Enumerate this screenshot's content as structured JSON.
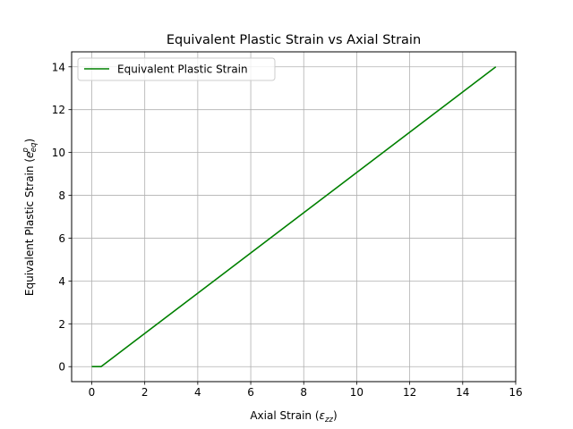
{
  "chart_data": {
    "type": "line",
    "title": "Equivalent Plastic Strain vs Axial Strain",
    "xlabel": {
      "prefix": "Axial Strain (",
      "symbol": "ε",
      "sub": "zz",
      "suffix": ")"
    },
    "ylabel": {
      "prefix": "Equivalent Plastic Strain (",
      "symbol": "e",
      "sup": "p",
      "sub": "eq",
      "suffix": ")"
    },
    "xlim": [
      -0.76,
      16.0
    ],
    "ylim": [
      -0.7,
      14.7
    ],
    "xticks": [
      0,
      2,
      4,
      6,
      8,
      10,
      12,
      14,
      16
    ],
    "yticks": [
      0,
      2,
      4,
      6,
      8,
      10,
      12,
      14
    ],
    "grid": true,
    "legend": {
      "location": "upper-left"
    },
    "series": [
      {
        "name": "Equivalent Plastic Strain",
        "color": "#008000",
        "x": [
          0.0,
          0.35,
          15.25
        ],
        "y": [
          0.0,
          0.0,
          14.0
        ]
      }
    ]
  }
}
